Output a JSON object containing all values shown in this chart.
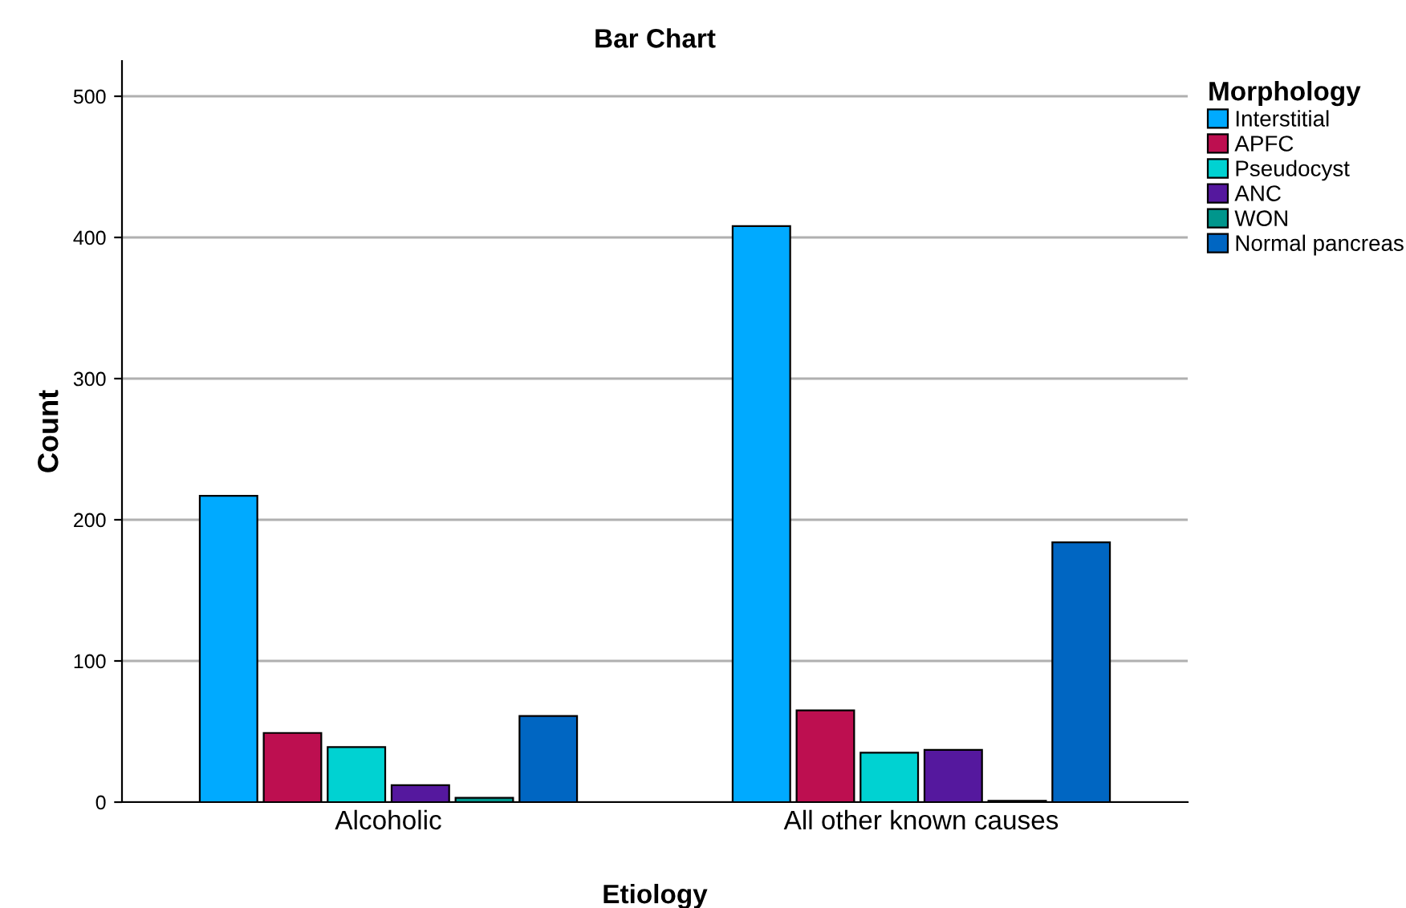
{
  "chart_data": {
    "type": "bar",
    "title": "Bar Chart",
    "xlabel": "Etiology",
    "ylabel": "Count",
    "legend_title": "Morphology",
    "categories": [
      "Alcoholic",
      "All other known causes"
    ],
    "series": [
      {
        "name": "Interstitial",
        "color": "#00aaff",
        "values": [
          217,
          408
        ]
      },
      {
        "name": "APFC",
        "color": "#bd0f50",
        "values": [
          49,
          65
        ]
      },
      {
        "name": "Pseudocyst",
        "color": "#00d2d2",
        "values": [
          39,
          35
        ]
      },
      {
        "name": "ANC",
        "color": "#55189e",
        "values": [
          12,
          37
        ]
      },
      {
        "name": "WON",
        "color": "#00968c",
        "values": [
          3,
          1
        ]
      },
      {
        "name": "Normal pancreas",
        "color": "#0066c2",
        "values": [
          61,
          184
        ]
      }
    ],
    "ylim": [
      0,
      525
    ],
    "yticks": [
      0,
      100,
      200,
      300,
      400,
      500
    ],
    "grid": "y",
    "legend": "top right"
  }
}
